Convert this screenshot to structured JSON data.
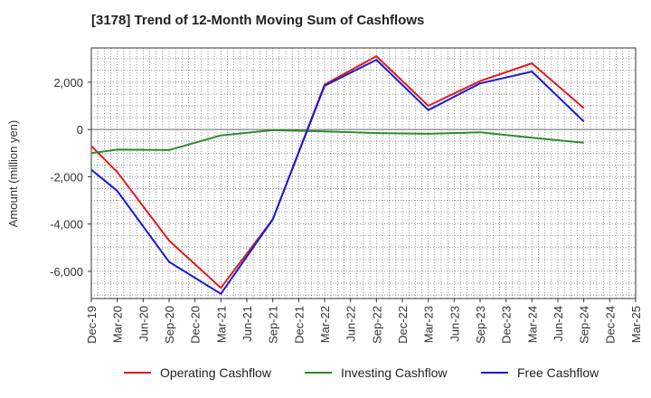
{
  "chart_data": {
    "type": "line",
    "title": "[3178]  Trend of 12-Month Moving Sum of Cashflows",
    "ylabel": "Amount (million yen)",
    "xlabel": "",
    "categories": [
      "Dec-19",
      "Mar-20",
      "Jun-20",
      "Sep-20",
      "Dec-20",
      "Mar-21",
      "Jun-21",
      "Sep-21",
      "Dec-21",
      "Mar-22",
      "Jun-22",
      "Sep-22",
      "Dec-22",
      "Mar-23",
      "Jun-23",
      "Sep-23",
      "Dec-23",
      "Mar-24",
      "Jun-24",
      "Sep-24",
      "Dec-24",
      "Mar-25"
    ],
    "yticks": [
      2000,
      0,
      -2000,
      -4000,
      -6000
    ],
    "ytick_labels": [
      "2,000",
      "0",
      "-2,000",
      "-4,000",
      "-6,000"
    ],
    "ylim": [
      -7150,
      3450
    ],
    "grid": true,
    "legend_position": "bottom",
    "series": [
      {
        "name": "Operating Cashflow",
        "color": "#e31a1c",
        "values": [
          -700,
          -1800,
          null,
          -4700,
          null,
          -6700,
          null,
          -3800,
          null,
          1900,
          null,
          3100,
          null,
          1000,
          null,
          2050,
          null,
          2800,
          null,
          900,
          null,
          null
        ]
      },
      {
        "name": "Investing Cashflow",
        "color": "#2e8b2e",
        "values": [
          -1000,
          -850,
          null,
          -870,
          null,
          -250,
          null,
          -30,
          null,
          -80,
          null,
          -150,
          null,
          -180,
          null,
          -120,
          null,
          -350,
          null,
          -560,
          null,
          null
        ]
      },
      {
        "name": "Free Cashflow",
        "color": "#1a1adb",
        "values": [
          -1700,
          -2600,
          null,
          -5600,
          null,
          -6950,
          null,
          -3800,
          null,
          1850,
          null,
          2950,
          null,
          820,
          null,
          1950,
          null,
          2450,
          null,
          340,
          null,
          null
        ]
      }
    ]
  }
}
